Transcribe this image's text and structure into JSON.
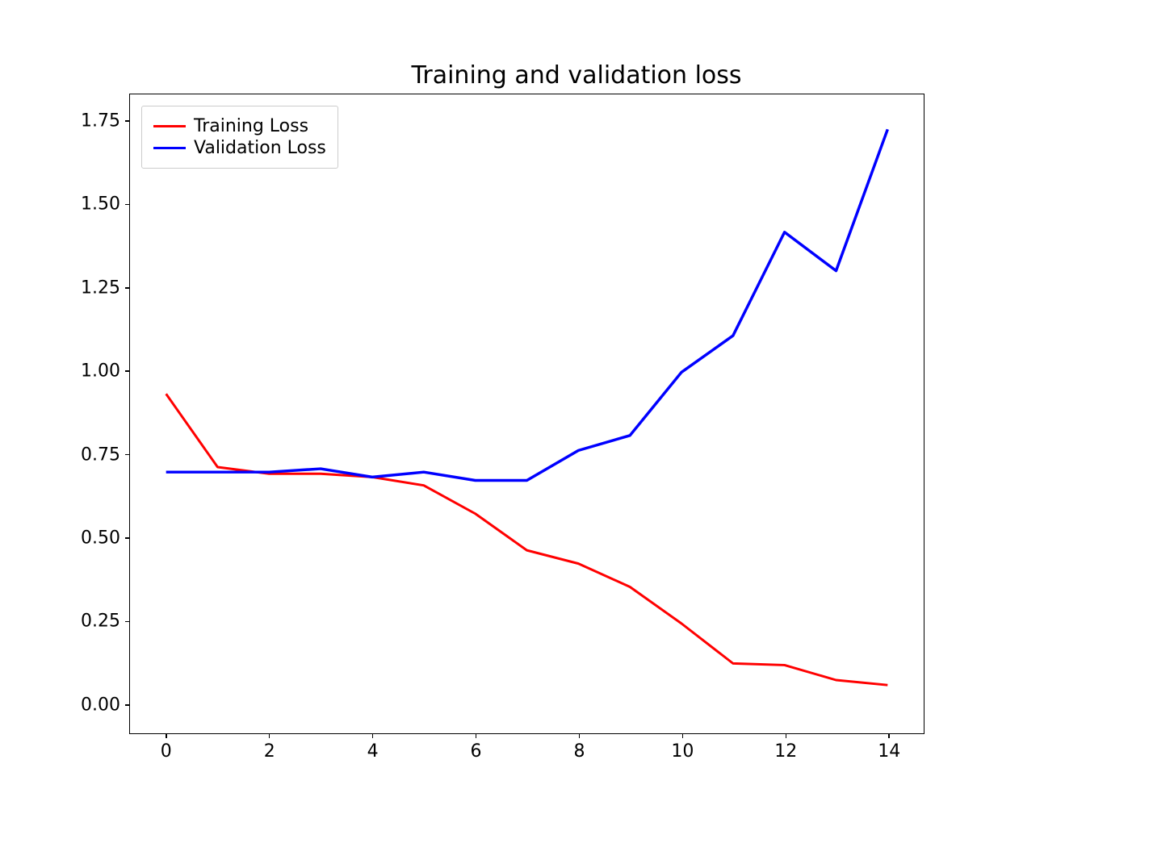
{
  "chart": {
    "type": "line",
    "title": "Training and validation loss",
    "title_fontsize": 30,
    "background_color": "#ffffff",
    "border_color": "#000000",
    "xlim": [
      -0.7,
      14.7
    ],
    "ylim": [
      -0.09,
      1.83
    ],
    "x_ticks": [
      0,
      2,
      4,
      6,
      8,
      10,
      12,
      14
    ],
    "y_ticks": [
      0.0,
      0.25,
      0.5,
      0.75,
      1.0,
      1.25,
      1.5,
      1.75
    ],
    "y_tick_labels": [
      "0.00",
      "0.25",
      "0.50",
      "0.75",
      "1.00",
      "1.25",
      "1.50",
      "1.75"
    ],
    "x_tick_labels": [
      "0",
      "2",
      "4",
      "6",
      "8",
      "10",
      "12",
      "14"
    ],
    "tick_fontsize": 22,
    "x_values": [
      0,
      1,
      2,
      3,
      4,
      5,
      6,
      7,
      8,
      9,
      10,
      11,
      12,
      13,
      14
    ],
    "series": [
      {
        "name": "Training Loss",
        "color": "#ff0000",
        "line_width": 3,
        "y_values": [
          0.93,
          0.71,
          0.69,
          0.69,
          0.68,
          0.655,
          0.57,
          0.46,
          0.42,
          0.35,
          0.24,
          0.12,
          0.115,
          0.07,
          0.055
        ]
      },
      {
        "name": "Validation Loss",
        "color": "#0000ff",
        "line_width": 3.5,
        "y_values": [
          0.695,
          0.695,
          0.695,
          0.705,
          0.68,
          0.695,
          0.67,
          0.67,
          0.76,
          0.805,
          0.995,
          1.105,
          1.416,
          1.3,
          1.725
        ]
      }
    ],
    "legend": {
      "position": "upper-left",
      "border_color": "#cccccc",
      "background_color": "#ffffff",
      "fontsize": 22
    }
  }
}
